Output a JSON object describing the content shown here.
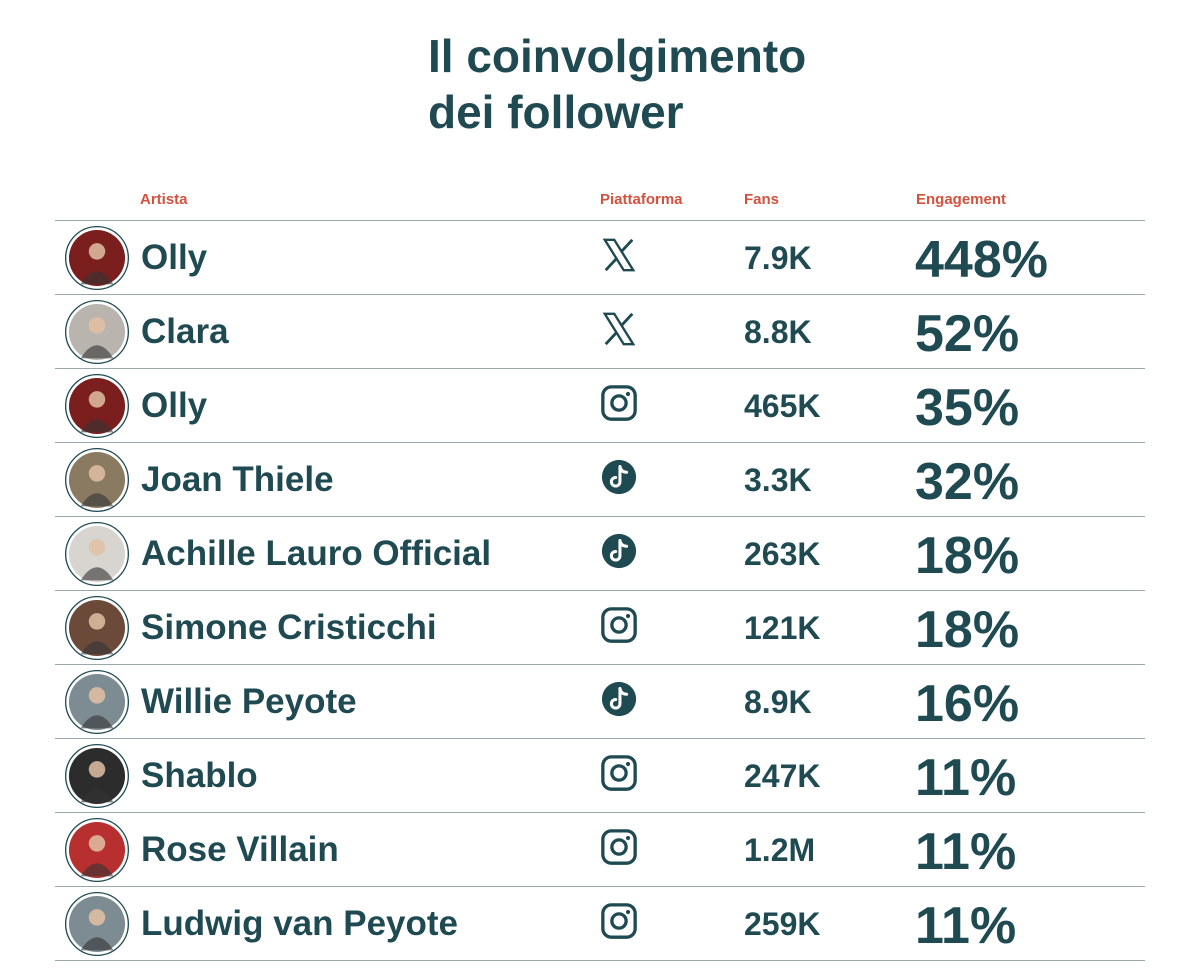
{
  "title": "Il coinvolgimento dei follower",
  "table": {
    "headers": [
      "Artista",
      "Piattaforma",
      "Fans",
      "Engagement"
    ],
    "rows": [
      {
        "artist": "Olly",
        "platform": "x",
        "fans": "7.9K",
        "engagement": "448%"
      },
      {
        "artist": "Clara",
        "platform": "x",
        "fans": "8.8K",
        "engagement": "52%"
      },
      {
        "artist": "Olly",
        "platform": "instagram",
        "fans": "465K",
        "engagement": "35%"
      },
      {
        "artist": "Joan Thiele",
        "platform": "tiktok",
        "fans": "3.3K",
        "engagement": "32%"
      },
      {
        "artist": "Achille Lauro Official",
        "platform": "tiktok",
        "fans": "263K",
        "engagement": "18%"
      },
      {
        "artist": "Simone Cristicchi",
        "platform": "instagram",
        "fans": "121K",
        "engagement": "18%"
      },
      {
        "artist": "Willie Peyote",
        "platform": "tiktok",
        "fans": "8.9K",
        "engagement": "16%"
      },
      {
        "artist": "Shablo",
        "platform": "instagram",
        "fans": "247K",
        "engagement": "11%"
      },
      {
        "artist": "Rose Villain",
        "platform": "instagram",
        "fans": "1.2M",
        "engagement": "11%"
      },
      {
        "artist": "Ludwig van Peyote",
        "platform": "instagram",
        "fans": "259K",
        "engagement": "11%"
      }
    ]
  }
}
